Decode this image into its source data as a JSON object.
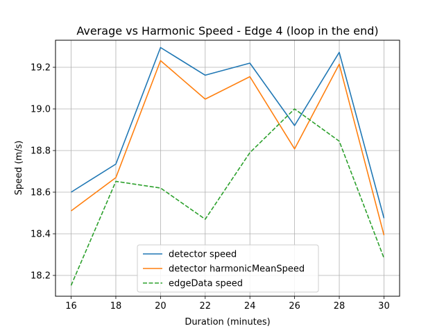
{
  "chart_data": {
    "type": "line",
    "title": "Average vs Harmonic Speed - Edge 4 (loop in the end)",
    "xlabel": "Duration (minutes)",
    "ylabel": "Speed (m/s)",
    "x": [
      16,
      18,
      20,
      22,
      24,
      26,
      28,
      30
    ],
    "xlim": [
      15.3,
      30.7
    ],
    "ylim": [
      18.1,
      19.33
    ],
    "xticks": [
      "16",
      "18",
      "20",
      "22",
      "24",
      "26",
      "28",
      "30"
    ],
    "yticks": [
      "18.2",
      "18.4",
      "18.6",
      "18.8",
      "19.0",
      "19.2"
    ],
    "grid": true,
    "legend_position": "bottom-center",
    "series": [
      {
        "name": "detector speed",
        "color": "#1f77b4",
        "linestyle": "solid",
        "values": [
          18.6,
          18.735,
          19.295,
          19.162,
          19.22,
          18.92,
          19.272,
          18.475
        ]
      },
      {
        "name": "detector harmonicMeanSpeed",
        "color": "#ff7f0e",
        "linestyle": "solid",
        "values": [
          18.51,
          18.67,
          19.232,
          19.047,
          19.155,
          18.808,
          19.215,
          18.393
        ]
      },
      {
        "name": "edgeData speed",
        "color": "#2ca02c",
        "linestyle": "dashed",
        "values": [
          18.152,
          18.652,
          18.62,
          18.47,
          18.79,
          19.0,
          18.845,
          18.283
        ]
      }
    ]
  }
}
